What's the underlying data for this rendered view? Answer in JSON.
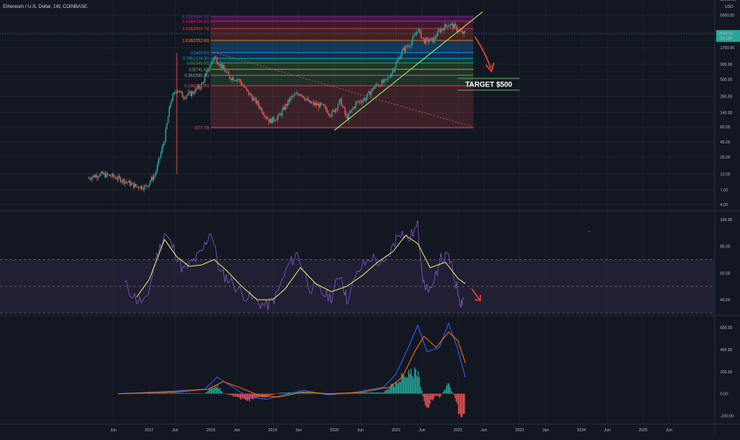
{
  "header": {
    "symbol_line": "Ethereum / U.S. Dollar, 1W, COINBASE"
  },
  "colors": {
    "background": "#131722",
    "grid": "#1e222d",
    "candle_up": "#26a69a",
    "candle_down": "#ef5350",
    "trendline": "#9be36a",
    "rsi_line": "#7e57c2",
    "rsi_ma": "#e6e36a",
    "rsi_band": "#2a2440",
    "macd_line": "#2962ff",
    "signal_line": "#ff6d00",
    "arrow": "#f44336",
    "target_line": "#4caf50"
  },
  "annotation": {
    "target_text": "TARGET  $500"
  },
  "chart_data": [
    {
      "type": "candlestick",
      "scale": "log",
      "title": "Ethereum / U.S. Dollar, 1W, COINBASE",
      "currency_label": "USD",
      "price_axis_ticks": [
        "11000.00",
        "6000.00",
        "3000.00",
        "1700.00",
        "900.00",
        "500.00",
        "260.00",
        "140.00",
        "80.00",
        "45.00",
        "25.00",
        "13.00",
        "7.00",
        "4.00"
      ],
      "price_axis_values": [
        11000,
        6000,
        3000,
        1700,
        900,
        500,
        260,
        140,
        80,
        45,
        25,
        13,
        7,
        4
      ],
      "current_price_label": "2890.69",
      "current_price_sub": "3d 19h",
      "x_axis_labels": [
        "Jun",
        "2017",
        "Jun",
        "2018",
        "Jun",
        "2019",
        "Jun",
        "2020",
        "Jun",
        "2021",
        "Jun",
        "2022",
        "Jun",
        "2023",
        "Jun",
        "2024",
        "Jun",
        "2025",
        "Jun"
      ],
      "x_axis_times": [
        2016.42,
        2017.0,
        2017.42,
        2018.0,
        2018.42,
        2019.0,
        2019.42,
        2020.0,
        2020.42,
        2021.0,
        2021.42,
        2022.0,
        2022.42,
        2023.0,
        2023.42,
        2024.0,
        2024.42,
        2025.0,
        2025.42
      ],
      "close_path": [
        {
          "t": 2016.0,
          "p": 11
        },
        {
          "t": 2016.2,
          "p": 13
        },
        {
          "t": 2016.4,
          "p": 12
        },
        {
          "t": 2016.6,
          "p": 10
        },
        {
          "t": 2016.8,
          "p": 8
        },
        {
          "t": 2016.95,
          "p": 8
        },
        {
          "t": 2017.1,
          "p": 13
        },
        {
          "t": 2017.25,
          "p": 50
        },
        {
          "t": 2017.35,
          "p": 220
        },
        {
          "t": 2017.45,
          "p": 350
        },
        {
          "t": 2017.55,
          "p": 260
        },
        {
          "t": 2017.7,
          "p": 300
        },
        {
          "t": 2017.85,
          "p": 400
        },
        {
          "t": 2017.95,
          "p": 700
        },
        {
          "t": 2018.05,
          "p": 1200
        },
        {
          "t": 2018.15,
          "p": 900
        },
        {
          "t": 2018.3,
          "p": 550
        },
        {
          "t": 2018.45,
          "p": 500
        },
        {
          "t": 2018.6,
          "p": 300
        },
        {
          "t": 2018.75,
          "p": 200
        },
        {
          "t": 2018.95,
          "p": 100
        },
        {
          "t": 2019.1,
          "p": 120
        },
        {
          "t": 2019.3,
          "p": 250
        },
        {
          "t": 2019.45,
          "p": 300
        },
        {
          "t": 2019.6,
          "p": 200
        },
        {
          "t": 2019.8,
          "p": 180
        },
        {
          "t": 2019.95,
          "p": 130
        },
        {
          "t": 2020.1,
          "p": 220
        },
        {
          "t": 2020.2,
          "p": 110
        },
        {
          "t": 2020.35,
          "p": 200
        },
        {
          "t": 2020.5,
          "p": 240
        },
        {
          "t": 2020.65,
          "p": 380
        },
        {
          "t": 2020.85,
          "p": 480
        },
        {
          "t": 2020.95,
          "p": 730
        },
        {
          "t": 2021.1,
          "p": 1500
        },
        {
          "t": 2021.25,
          "p": 2100
        },
        {
          "t": 2021.35,
          "p": 3500
        },
        {
          "t": 2021.45,
          "p": 2200
        },
        {
          "t": 2021.6,
          "p": 2300
        },
        {
          "t": 2021.7,
          "p": 3300
        },
        {
          "t": 2021.85,
          "p": 4300
        },
        {
          "t": 2021.95,
          "p": 3800
        },
        {
          "t": 2022.05,
          "p": 3000
        },
        {
          "t": 2022.12,
          "p": 2890
        }
      ],
      "wick": {
        "t": 2017.45,
        "p_low": 13
      },
      "fib_levels": [
        {
          "label": "4.236(5664.16)",
          "price": 5664.16
        },
        {
          "label": "3.618(4726.00)",
          "price": 4726.0
        },
        {
          "label": "2.618(3564.79)",
          "price": 3564.79
        },
        {
          "label": "1.618(2252.60)",
          "price": 2252.6
        },
        {
          "label": "1(1409.55)",
          "price": 1409.55
        },
        {
          "label": "0.786(1124.35)",
          "price": 1124.35
        },
        {
          "label": "0.65(949.00)",
          "price": 949.0
        },
        {
          "label": "0.5(741.62)",
          "price": 741.62
        },
        {
          "label": "0.382(586.51)",
          "price": 586.51
        },
        {
          "label": "0.236(392.06)",
          "price": 392.06
        },
        {
          "label": "0(77.70)",
          "price": 77.7
        }
      ],
      "fib_range_t": [
        2018.0,
        2022.25
      ],
      "trendline": [
        {
          "t": 2020.0,
          "p": 70
        },
        {
          "t": 2022.4,
          "p": 6800
        }
      ],
      "dotted_line": [
        {
          "t": 2018.05,
          "p": 1420
        },
        {
          "t": 2022.25,
          "p": 80
        }
      ],
      "target_line_upper": {
        "t": [
          2022.0,
          2023.0
        ],
        "p": 520
      },
      "target_line_lower": {
        "t": [
          2022.0,
          2023.0
        ],
        "p": 330
      }
    },
    {
      "type": "line",
      "indicator": "RSI",
      "y_axis_ticks": [
        "100.00",
        "80.00",
        "60.00",
        "40.00"
      ],
      "y_axis_values": [
        100,
        80,
        60,
        40
      ],
      "ylim": [
        30,
        104
      ],
      "band": [
        70,
        30
      ],
      "midline": 50,
      "rsi": [
        {
          "t": 2016.6,
          "v": 52
        },
        {
          "t": 2016.8,
          "v": 40
        },
        {
          "t": 2016.95,
          "v": 38
        },
        {
          "t": 2017.1,
          "v": 68
        },
        {
          "t": 2017.25,
          "v": 90
        },
        {
          "t": 2017.4,
          "v": 78
        },
        {
          "t": 2017.55,
          "v": 62
        },
        {
          "t": 2017.7,
          "v": 68
        },
        {
          "t": 2017.85,
          "v": 75
        },
        {
          "t": 2018.0,
          "v": 92
        },
        {
          "t": 2018.15,
          "v": 60
        },
        {
          "t": 2018.3,
          "v": 55
        },
        {
          "t": 2018.5,
          "v": 45
        },
        {
          "t": 2018.7,
          "v": 40
        },
        {
          "t": 2018.9,
          "v": 35
        },
        {
          "t": 2019.05,
          "v": 42
        },
        {
          "t": 2019.25,
          "v": 65
        },
        {
          "t": 2019.4,
          "v": 75
        },
        {
          "t": 2019.6,
          "v": 50
        },
        {
          "t": 2019.8,
          "v": 45
        },
        {
          "t": 2019.95,
          "v": 42
        },
        {
          "t": 2020.1,
          "v": 60
        },
        {
          "t": 2020.2,
          "v": 40
        },
        {
          "t": 2020.4,
          "v": 62
        },
        {
          "t": 2020.6,
          "v": 72
        },
        {
          "t": 2020.8,
          "v": 65
        },
        {
          "t": 2020.95,
          "v": 80
        },
        {
          "t": 2021.05,
          "v": 92
        },
        {
          "t": 2021.2,
          "v": 85
        },
        {
          "t": 2021.35,
          "v": 95
        },
        {
          "t": 2021.45,
          "v": 50
        },
        {
          "t": 2021.6,
          "v": 48
        },
        {
          "t": 2021.7,
          "v": 70
        },
        {
          "t": 2021.85,
          "v": 72
        },
        {
          "t": 2021.95,
          "v": 55
        },
        {
          "t": 2022.05,
          "v": 38
        },
        {
          "t": 2022.1,
          "v": 42
        }
      ],
      "rsi_ma": [
        {
          "t": 2016.8,
          "v": 42
        },
        {
          "t": 2017.0,
          "v": 55
        },
        {
          "t": 2017.25,
          "v": 85
        },
        {
          "t": 2017.45,
          "v": 72
        },
        {
          "t": 2017.65,
          "v": 65
        },
        {
          "t": 2017.85,
          "v": 66
        },
        {
          "t": 2018.05,
          "v": 70
        },
        {
          "t": 2018.25,
          "v": 62
        },
        {
          "t": 2018.5,
          "v": 50
        },
        {
          "t": 2018.75,
          "v": 40
        },
        {
          "t": 2019.0,
          "v": 40
        },
        {
          "t": 2019.2,
          "v": 48
        },
        {
          "t": 2019.45,
          "v": 64
        },
        {
          "t": 2019.7,
          "v": 52
        },
        {
          "t": 2019.95,
          "v": 46
        },
        {
          "t": 2020.2,
          "v": 50
        },
        {
          "t": 2020.45,
          "v": 58
        },
        {
          "t": 2020.7,
          "v": 68
        },
        {
          "t": 2020.95,
          "v": 76
        },
        {
          "t": 2021.15,
          "v": 88
        },
        {
          "t": 2021.35,
          "v": 82
        },
        {
          "t": 2021.55,
          "v": 64
        },
        {
          "t": 2021.8,
          "v": 68
        },
        {
          "t": 2022.0,
          "v": 56
        },
        {
          "t": 2022.12,
          "v": 52
        }
      ]
    },
    {
      "type": "bar",
      "indicator": "MACD",
      "y_axis_ticks": [
        "600.00",
        "400.00",
        "200.00",
        "0.00",
        "-200.00"
      ],
      "y_axis_values": [
        600,
        400,
        200,
        0,
        -200
      ],
      "ylim": [
        -240,
        680
      ],
      "macd": [
        {
          "t": 2016.5,
          "v": 0
        },
        {
          "t": 2017.3,
          "v": 20
        },
        {
          "t": 2017.9,
          "v": 40
        },
        {
          "t": 2018.1,
          "v": 150
        },
        {
          "t": 2018.3,
          "v": 80
        },
        {
          "t": 2018.6,
          "v": -30
        },
        {
          "t": 2018.9,
          "v": -50
        },
        {
          "t": 2019.2,
          "v": -10
        },
        {
          "t": 2019.5,
          "v": 30
        },
        {
          "t": 2019.9,
          "v": -10
        },
        {
          "t": 2020.3,
          "v": 10
        },
        {
          "t": 2020.8,
          "v": 60
        },
        {
          "t": 2021.0,
          "v": 180
        },
        {
          "t": 2021.2,
          "v": 420
        },
        {
          "t": 2021.35,
          "v": 620
        },
        {
          "t": 2021.5,
          "v": 380
        },
        {
          "t": 2021.7,
          "v": 420
        },
        {
          "t": 2021.85,
          "v": 640
        },
        {
          "t": 2022.0,
          "v": 400
        },
        {
          "t": 2022.12,
          "v": 150
        }
      ],
      "signal": [
        {
          "t": 2016.5,
          "v": 0
        },
        {
          "t": 2017.4,
          "v": 15
        },
        {
          "t": 2017.95,
          "v": 40
        },
        {
          "t": 2018.2,
          "v": 110
        },
        {
          "t": 2018.45,
          "v": 60
        },
        {
          "t": 2018.8,
          "v": -20
        },
        {
          "t": 2019.1,
          "v": -30
        },
        {
          "t": 2019.5,
          "v": 15
        },
        {
          "t": 2019.9,
          "v": 0
        },
        {
          "t": 2020.4,
          "v": 10
        },
        {
          "t": 2020.9,
          "v": 60
        },
        {
          "t": 2021.1,
          "v": 150
        },
        {
          "t": 2021.3,
          "v": 380
        },
        {
          "t": 2021.45,
          "v": 520
        },
        {
          "t": 2021.65,
          "v": 420
        },
        {
          "t": 2021.85,
          "v": 560
        },
        {
          "t": 2022.0,
          "v": 480
        },
        {
          "t": 2022.12,
          "v": 280
        }
      ]
    }
  ]
}
